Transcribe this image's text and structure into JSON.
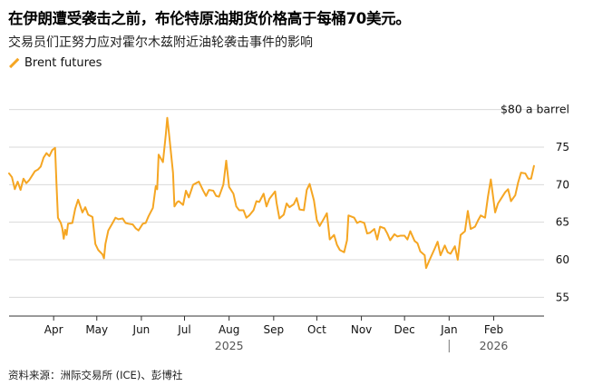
{
  "title": "在伊朗遭受袭击之前，布伦特原油期货价格高于每桶70美元。",
  "subtitle": "交易员们正努力应对霍尔木兹附近油轮袭击事件的影响",
  "legend": {
    "label": "Brent futures"
  },
  "source": "资料来源：洲际交易所 (ICE)、彭博社",
  "colors": {
    "line": "#f5a623",
    "grid": "#d9d9d9",
    "axis": "#333333"
  },
  "chart_data": {
    "type": "line",
    "xlabel": "",
    "ylabel": "",
    "unit_label": "$80 a barrel",
    "ylim": [
      52.5,
      82.5
    ],
    "y_ticks": [
      55,
      60,
      65,
      70,
      75
    ],
    "x_range": [
      "2025-03-01",
      "2026-03-08"
    ],
    "month_ticks": [
      {
        "date": "2025-04-01",
        "label": "Apr"
      },
      {
        "date": "2025-05-01",
        "label": "May"
      },
      {
        "date": "2025-06-01",
        "label": "Jun"
      },
      {
        "date": "2025-07-01",
        "label": "Jul"
      },
      {
        "date": "2025-08-01",
        "label": "Aug"
      },
      {
        "date": "2025-09-01",
        "label": "Sep"
      },
      {
        "date": "2025-10-01",
        "label": "Oct"
      },
      {
        "date": "2025-11-01",
        "label": "Nov"
      },
      {
        "date": "2025-12-01",
        "label": "Dec"
      },
      {
        "date": "2026-01-01",
        "label": "Jan"
      },
      {
        "date": "2026-02-01",
        "label": "Feb"
      }
    ],
    "year_labels": [
      {
        "date": "2025-08-01",
        "label": "2025"
      },
      {
        "date": "2026-02-01",
        "label": "2026"
      }
    ],
    "year_divider": "2026-01-01",
    "series": [
      {
        "name": "Brent futures",
        "points": [
          [
            "2025-03-01",
            71.5
          ],
          [
            "2025-03-03",
            71.0
          ],
          [
            "2025-03-05",
            69.4
          ],
          [
            "2025-03-07",
            70.4
          ],
          [
            "2025-03-09",
            69.3
          ],
          [
            "2025-03-11",
            70.8
          ],
          [
            "2025-03-13",
            70.2
          ],
          [
            "2025-03-15",
            70.6
          ],
          [
            "2025-03-17",
            71.2
          ],
          [
            "2025-03-19",
            71.8
          ],
          [
            "2025-03-21",
            72.0
          ],
          [
            "2025-03-23",
            72.4
          ],
          [
            "2025-03-25",
            73.6
          ],
          [
            "2025-03-27",
            74.2
          ],
          [
            "2025-03-29",
            73.8
          ],
          [
            "2025-03-31",
            74.6
          ],
          [
            "2025-04-02",
            74.9
          ],
          [
            "2025-04-03",
            70.0
          ],
          [
            "2025-04-04",
            65.6
          ],
          [
            "2025-04-06",
            64.9
          ],
          [
            "2025-04-07",
            64.2
          ],
          [
            "2025-04-08",
            62.8
          ],
          [
            "2025-04-09",
            64.0
          ],
          [
            "2025-04-10",
            63.3
          ],
          [
            "2025-04-11",
            64.8
          ],
          [
            "2025-04-14",
            64.9
          ],
          [
            "2025-04-16",
            66.8
          ],
          [
            "2025-04-18",
            68.0
          ],
          [
            "2025-04-21",
            66.3
          ],
          [
            "2025-04-23",
            67.0
          ],
          [
            "2025-04-25",
            66.0
          ],
          [
            "2025-04-28",
            65.7
          ],
          [
            "2025-04-30",
            62.1
          ],
          [
            "2025-05-02",
            61.3
          ],
          [
            "2025-05-05",
            60.7
          ],
          [
            "2025-05-06",
            60.2
          ],
          [
            "2025-05-07",
            62.1
          ],
          [
            "2025-05-09",
            63.9
          ],
          [
            "2025-05-12",
            64.9
          ],
          [
            "2025-05-14",
            65.6
          ],
          [
            "2025-05-16",
            65.4
          ],
          [
            "2025-05-19",
            65.5
          ],
          [
            "2025-05-21",
            64.9
          ],
          [
            "2025-05-23",
            64.8
          ],
          [
            "2025-05-26",
            64.7
          ],
          [
            "2025-05-28",
            64.2
          ],
          [
            "2025-05-30",
            63.9
          ],
          [
            "2025-06-02",
            64.8
          ],
          [
            "2025-06-04",
            64.9
          ],
          [
            "2025-06-06",
            65.8
          ],
          [
            "2025-06-09",
            66.9
          ],
          [
            "2025-06-11",
            69.8
          ],
          [
            "2025-06-12",
            69.4
          ],
          [
            "2025-06-13",
            74.0
          ],
          [
            "2025-06-16",
            73.0
          ],
          [
            "2025-06-18",
            76.7
          ],
          [
            "2025-06-19",
            78.9
          ],
          [
            "2025-06-20",
            77.2
          ],
          [
            "2025-06-23",
            71.6
          ],
          [
            "2025-06-24",
            67.1
          ],
          [
            "2025-06-26",
            67.7
          ],
          [
            "2025-06-27",
            67.8
          ],
          [
            "2025-06-30",
            67.3
          ],
          [
            "2025-07-02",
            69.2
          ],
          [
            "2025-07-04",
            68.3
          ],
          [
            "2025-07-07",
            70.0
          ],
          [
            "2025-07-09",
            70.2
          ],
          [
            "2025-07-11",
            70.4
          ],
          [
            "2025-07-14",
            69.2
          ],
          [
            "2025-07-16",
            68.5
          ],
          [
            "2025-07-18",
            69.3
          ],
          [
            "2025-07-21",
            69.2
          ],
          [
            "2025-07-23",
            68.5
          ],
          [
            "2025-07-25",
            68.4
          ],
          [
            "2025-07-28",
            70.0
          ],
          [
            "2025-07-30",
            73.2
          ],
          [
            "2025-08-01",
            69.7
          ],
          [
            "2025-08-04",
            68.8
          ],
          [
            "2025-08-06",
            67.1
          ],
          [
            "2025-08-08",
            66.6
          ],
          [
            "2025-08-11",
            66.6
          ],
          [
            "2025-08-13",
            65.6
          ],
          [
            "2025-08-15",
            65.9
          ],
          [
            "2025-08-18",
            66.6
          ],
          [
            "2025-08-20",
            67.8
          ],
          [
            "2025-08-22",
            67.7
          ],
          [
            "2025-08-25",
            68.8
          ],
          [
            "2025-08-27",
            67.1
          ],
          [
            "2025-08-29",
            68.1
          ],
          [
            "2025-09-02",
            69.1
          ],
          [
            "2025-09-03",
            67.6
          ],
          [
            "2025-09-05",
            65.5
          ],
          [
            "2025-09-08",
            66.0
          ],
          [
            "2025-09-10",
            67.5
          ],
          [
            "2025-09-12",
            67.0
          ],
          [
            "2025-09-15",
            67.4
          ],
          [
            "2025-09-17",
            68.2
          ],
          [
            "2025-09-19",
            66.7
          ],
          [
            "2025-09-22",
            66.6
          ],
          [
            "2025-09-24",
            69.3
          ],
          [
            "2025-09-26",
            70.1
          ],
          [
            "2025-09-29",
            67.9
          ],
          [
            "2025-10-01",
            65.3
          ],
          [
            "2025-10-03",
            64.5
          ],
          [
            "2025-10-06",
            65.5
          ],
          [
            "2025-10-08",
            66.2
          ],
          [
            "2025-10-10",
            62.7
          ],
          [
            "2025-10-13",
            63.3
          ],
          [
            "2025-10-15",
            62.0
          ],
          [
            "2025-10-17",
            61.3
          ],
          [
            "2025-10-20",
            61.0
          ],
          [
            "2025-10-22",
            62.6
          ],
          [
            "2025-10-23",
            65.9
          ],
          [
            "2025-10-27",
            65.6
          ],
          [
            "2025-10-29",
            64.9
          ],
          [
            "2025-10-31",
            65.1
          ],
          [
            "2025-11-03",
            64.9
          ],
          [
            "2025-11-05",
            63.5
          ],
          [
            "2025-11-07",
            63.6
          ],
          [
            "2025-11-10",
            64.1
          ],
          [
            "2025-11-12",
            62.7
          ],
          [
            "2025-11-14",
            64.4
          ],
          [
            "2025-11-17",
            64.2
          ],
          [
            "2025-11-19",
            63.5
          ],
          [
            "2025-11-21",
            62.6
          ],
          [
            "2025-11-24",
            63.4
          ],
          [
            "2025-11-26",
            63.1
          ],
          [
            "2025-11-28",
            63.2
          ],
          [
            "2025-12-01",
            63.2
          ],
          [
            "2025-12-03",
            62.7
          ],
          [
            "2025-12-05",
            63.8
          ],
          [
            "2025-12-08",
            62.5
          ],
          [
            "2025-12-10",
            62.2
          ],
          [
            "2025-12-12",
            61.1
          ],
          [
            "2025-12-15",
            60.6
          ],
          [
            "2025-12-16",
            58.9
          ],
          [
            "2025-12-18",
            59.8
          ],
          [
            "2025-12-22",
            61.5
          ],
          [
            "2025-12-24",
            62.4
          ],
          [
            "2025-12-26",
            60.6
          ],
          [
            "2025-12-29",
            61.9
          ],
          [
            "2025-12-31",
            61.0
          ],
          [
            "2026-01-02",
            60.8
          ],
          [
            "2026-01-05",
            61.8
          ],
          [
            "2026-01-07",
            60.0
          ],
          [
            "2026-01-09",
            63.3
          ],
          [
            "2026-01-12",
            63.8
          ],
          [
            "2026-01-14",
            66.5
          ],
          [
            "2026-01-16",
            64.1
          ],
          [
            "2026-01-19",
            64.4
          ],
          [
            "2026-01-21",
            65.2
          ],
          [
            "2026-01-23",
            65.9
          ],
          [
            "2026-01-26",
            65.6
          ],
          [
            "2026-01-28",
            68.4
          ],
          [
            "2026-01-30",
            70.7
          ],
          [
            "2026-02-02",
            66.3
          ],
          [
            "2026-02-04",
            67.5
          ],
          [
            "2026-02-06",
            68.1
          ],
          [
            "2026-02-09",
            69.0
          ],
          [
            "2026-02-11",
            69.4
          ],
          [
            "2026-02-13",
            67.8
          ],
          [
            "2026-02-16",
            68.6
          ],
          [
            "2026-02-18",
            70.3
          ],
          [
            "2026-02-20",
            71.6
          ],
          [
            "2026-02-23",
            71.5
          ],
          [
            "2026-02-25",
            70.8
          ],
          [
            "2026-02-27",
            70.8
          ],
          [
            "2026-03-01",
            72.5
          ]
        ]
      }
    ]
  }
}
